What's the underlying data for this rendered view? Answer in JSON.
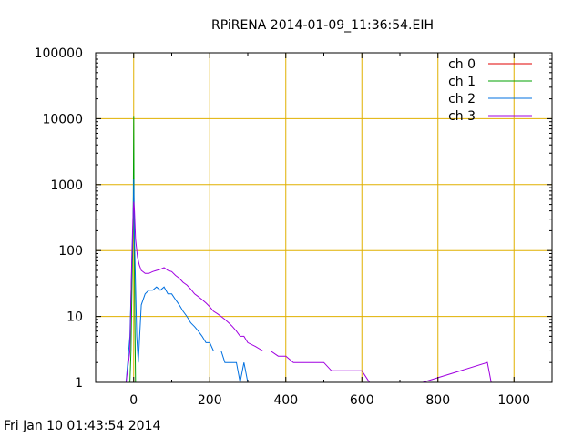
{
  "chart_data": {
    "type": "line",
    "title": "RPiRENA 2014-01-09_11:36:54.EIH",
    "xlabel": "",
    "ylabel": "",
    "x_scale": "linear",
    "y_scale": "log",
    "xlim": [
      -100,
      1100
    ],
    "ylim": [
      1,
      100000
    ],
    "x_ticks": [
      0,
      200,
      400,
      600,
      800,
      1000
    ],
    "x_tick_labels": [
      "0",
      "200",
      "400",
      "600",
      "800",
      "1000"
    ],
    "y_ticks": [
      1,
      10,
      100,
      1000,
      10000,
      100000
    ],
    "y_tick_labels": [
      "1",
      "10",
      "100",
      "1000",
      "10000",
      "100000"
    ],
    "grid": true,
    "grid_color": "#e0b000",
    "legend_position": "top-right",
    "series": [
      {
        "name": "ch 0",
        "color": "#e00000",
        "x": [
          -100,
          1100
        ],
        "y": [
          1,
          1
        ]
      },
      {
        "name": "ch 1",
        "color": "#00a000",
        "x": [
          -10,
          -7,
          -5,
          -3,
          -1,
          0,
          1,
          3,
          5
        ],
        "y": [
          1,
          3,
          20,
          80,
          500,
          11000,
          300,
          10,
          1
        ]
      },
      {
        "name": "ch 2",
        "color": "#0070e0",
        "x": [
          -20,
          -10,
          -5,
          -2,
          0,
          2,
          5,
          8,
          12,
          20,
          30,
          40,
          50,
          60,
          70,
          80,
          90,
          100,
          110,
          120,
          130,
          140,
          150,
          160,
          170,
          180,
          190,
          200,
          210,
          220,
          230,
          240,
          250,
          260,
          270,
          280,
          290,
          300,
          320,
          340,
          360
        ],
        "y": [
          1,
          5,
          60,
          200,
          1200,
          150,
          30,
          5,
          2,
          15,
          22,
          25,
          25,
          28,
          25,
          28,
          22,
          22,
          18,
          15,
          12,
          10,
          8,
          7,
          6,
          5,
          4,
          4,
          3,
          3,
          3,
          2,
          2,
          2,
          2,
          1,
          2,
          1,
          1,
          1,
          1
        ]
      },
      {
        "name": "ch 3",
        "color": "#a000e0",
        "x": [
          -20,
          -10,
          -5,
          -2,
          0,
          2,
          5,
          10,
          15,
          20,
          30,
          40,
          50,
          60,
          70,
          80,
          90,
          100,
          110,
          120,
          130,
          140,
          150,
          160,
          170,
          180,
          190,
          200,
          210,
          220,
          230,
          240,
          250,
          260,
          270,
          280,
          290,
          300,
          320,
          340,
          360,
          380,
          400,
          420,
          440,
          460,
          480,
          500,
          520,
          540,
          560,
          580,
          600,
          620,
          640,
          660,
          680,
          700,
          720,
          740,
          760,
          930,
          940
        ],
        "y": [
          1,
          3,
          80,
          300,
          550,
          400,
          150,
          80,
          60,
          50,
          45,
          45,
          48,
          50,
          52,
          55,
          50,
          48,
          42,
          38,
          33,
          30,
          26,
          22,
          20,
          18,
          16,
          14,
          12,
          11,
          10,
          9,
          8,
          7,
          6,
          5,
          5,
          4,
          3.5,
          3,
          3,
          2.5,
          2.5,
          2,
          2,
          2,
          2,
          2,
          1.5,
          1.5,
          1.5,
          1.5,
          1.5,
          1,
          1,
          1,
          1,
          1,
          1,
          1,
          1,
          2,
          1
        ]
      }
    ],
    "footer_timestamp": "Fri Jan 10 01:43:54 2014"
  }
}
